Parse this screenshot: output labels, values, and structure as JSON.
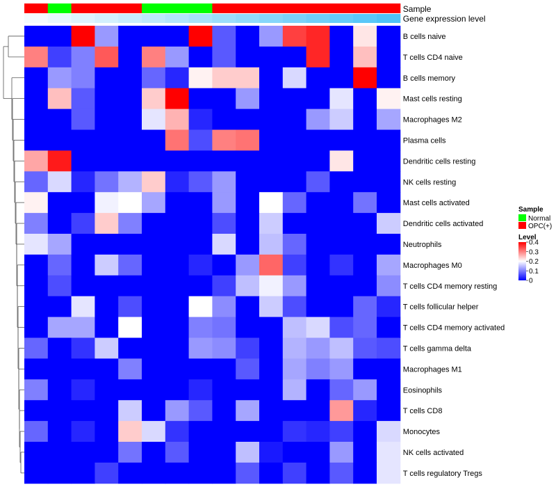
{
  "chart_data": {
    "type": "heatmap",
    "annotation_tracks": [
      {
        "label": "Sample"
      },
      {
        "label": "Gene expression level"
      }
    ],
    "sample_groups": [
      "OPC(+)",
      "Normal",
      "OPC(+)",
      "OPC(+)",
      "OPC(+)",
      "Normal",
      "Normal",
      "Normal",
      "OPC(+)",
      "OPC(+)",
      "OPC(+)",
      "OPC(+)",
      "OPC(+)",
      "OPC(+)",
      "OPC(+)",
      "OPC(+)"
    ],
    "sample_colors": {
      "Normal": "#00ff00",
      "OPC(+)": "#ff0000"
    },
    "expression_levels": [
      0.02,
      0.04,
      0.06,
      0.08,
      0.1,
      0.12,
      0.14,
      0.16,
      0.18,
      0.2,
      0.22,
      0.24,
      0.26,
      0.28,
      0.3,
      0.32
    ],
    "expression_colors": {
      "low": "#ffffff",
      "high": "#4fc3f7"
    },
    "rows": [
      "B cells naive",
      "T cells CD4 naive",
      "B cells memory",
      "Mast cells resting",
      "Macrophages M2",
      "Plasma cells",
      "Dendritic cells resting",
      "NK cells resting",
      "Mast cells activated",
      "Dendritic cells activated",
      "Neutrophils",
      "Macrophages M0",
      "T cells CD4 memory resting",
      "T cells follicular helper",
      "T cells CD4 memory activated",
      "T cells gamma delta",
      "Macrophages M1",
      "Eosinophils",
      "T cells CD8",
      "Monocytes",
      "NK cells activated",
      "T cells regulatory  Tregs"
    ],
    "values": [
      [
        0.0,
        0.0,
        0.4,
        0.12,
        0.0,
        0.0,
        0.0,
        0.4,
        0.07,
        0.0,
        0.12,
        0.35,
        0.37,
        0.0,
        0.22,
        0.0
      ],
      [
        0.3,
        0.05,
        0.1,
        0.33,
        0.0,
        0.3,
        0.12,
        0.0,
        0.07,
        0.0,
        0.0,
        0.0,
        0.37,
        0.0,
        0.25,
        0.0
      ],
      [
        0.0,
        0.12,
        0.1,
        0.0,
        0.0,
        0.08,
        0.03,
        0.21,
        0.24,
        0.24,
        0.0,
        0.17,
        0.0,
        0.0,
        0.4,
        0.0
      ],
      [
        0.0,
        0.25,
        0.07,
        0.0,
        0.0,
        0.24,
        0.4,
        0.0,
        0.0,
        0.12,
        0.0,
        0.0,
        0.0,
        0.18,
        0.0,
        0.21
      ],
      [
        0.0,
        0.0,
        0.07,
        0.0,
        0.0,
        0.18,
        0.26,
        0.03,
        0.0,
        0.0,
        0.0,
        0.0,
        0.12,
        0.16,
        0.0,
        0.13
      ],
      [
        0.0,
        0.0,
        0.0,
        0.0,
        0.0,
        0.0,
        0.31,
        0.06,
        0.3,
        0.31,
        0.0,
        0.0,
        0.0,
        0.0,
        0.0,
        0.0
      ],
      [
        0.27,
        0.38,
        0.0,
        0.0,
        0.0,
        0.0,
        0.0,
        0.0,
        0.0,
        0.0,
        0.0,
        0.0,
        0.0,
        0.22,
        0.0,
        0.0
      ],
      [
        0.08,
        0.17,
        0.03,
        0.09,
        0.14,
        0.24,
        0.03,
        0.07,
        0.12,
        0.0,
        0.0,
        0.0,
        0.07,
        0.0,
        0.0,
        0.0
      ],
      [
        0.21,
        0.0,
        0.0,
        0.19,
        0.2,
        0.13,
        0.0,
        0.0,
        0.12,
        0.0,
        0.2,
        0.08,
        0.0,
        0.0,
        0.09,
        0.0
      ],
      [
        0.1,
        0.0,
        0.05,
        0.24,
        0.1,
        0.0,
        0.0,
        0.0,
        0.06,
        0.0,
        0.16,
        0.0,
        0.0,
        0.0,
        0.0,
        0.16
      ],
      [
        0.18,
        0.13,
        0.0,
        0.0,
        0.0,
        0.0,
        0.0,
        0.0,
        0.17,
        0.0,
        0.15,
        0.08,
        0.0,
        0.0,
        0.0,
        0.0
      ],
      [
        0.0,
        0.08,
        0.0,
        0.16,
        0.08,
        0.0,
        0.0,
        0.03,
        0.0,
        0.12,
        0.32,
        0.05,
        0.0,
        0.04,
        0.0,
        0.13
      ],
      [
        0.0,
        0.06,
        0.0,
        0.0,
        0.0,
        0.0,
        0.0,
        0.0,
        0.05,
        0.15,
        0.19,
        0.12,
        0.0,
        0.0,
        0.0,
        0.11
      ],
      [
        0.0,
        0.0,
        0.18,
        0.0,
        0.06,
        0.0,
        0.0,
        0.2,
        0.11,
        0.0,
        0.16,
        0.06,
        0.0,
        0.0,
        0.08,
        0.03
      ],
      [
        0.0,
        0.13,
        0.13,
        0.0,
        0.2,
        0.0,
        0.0,
        0.1,
        0.09,
        0.0,
        0.0,
        0.15,
        0.17,
        0.06,
        0.08,
        0.0
      ],
      [
        0.08,
        0.0,
        0.04,
        0.16,
        0.0,
        0.0,
        0.0,
        0.12,
        0.11,
        0.05,
        0.0,
        0.14,
        0.12,
        0.15,
        0.07,
        0.06
      ],
      [
        0.0,
        0.0,
        0.0,
        0.0,
        0.1,
        0.0,
        0.0,
        0.0,
        0.0,
        0.07,
        0.0,
        0.13,
        0.1,
        0.12,
        0.0,
        0.0
      ],
      [
        0.1,
        0.0,
        0.03,
        0.0,
        0.0,
        0.0,
        0.0,
        0.03,
        0.0,
        0.0,
        0.0,
        0.14,
        0.0,
        0.08,
        0.12,
        0.0
      ],
      [
        0.0,
        0.0,
        0.0,
        0.0,
        0.16,
        0.0,
        0.12,
        0.07,
        0.0,
        0.13,
        0.0,
        0.0,
        0.0,
        0.28,
        0.03,
        0.0
      ],
      [
        0.08,
        0.0,
        0.03,
        0.0,
        0.24,
        0.17,
        0.04,
        0.0,
        0.0,
        0.0,
        0.0,
        0.04,
        0.03,
        0.05,
        0.0,
        0.17
      ],
      [
        0.0,
        0.0,
        0.0,
        0.0,
        0.09,
        0.0,
        0.07,
        0.0,
        0.0,
        0.15,
        0.02,
        0.0,
        0.0,
        0.12,
        0.0,
        0.18
      ],
      [
        0.0,
        0.0,
        0.0,
        0.05,
        0.0,
        0.0,
        0.0,
        0.0,
        0.0,
        0.07,
        0.0,
        0.05,
        0.0,
        0.07,
        0.0,
        0.18
      ]
    ],
    "legend": {
      "sample_title": "Sample",
      "sample_items": [
        {
          "label": "Normal",
          "color": "#00ff00"
        },
        {
          "label": "OPC(+)",
          "color": "#ff0000"
        }
      ],
      "level_title": "Level",
      "level_ticks": [
        0.4,
        0.3,
        0.2,
        0.1,
        0
      ],
      "level_range": [
        0,
        0.4
      ],
      "color_low": "#0000ff",
      "color_mid": "#ffffff",
      "color_high": "#ff0000"
    },
    "dendrogram_side": "left",
    "legend_placement": "right"
  }
}
